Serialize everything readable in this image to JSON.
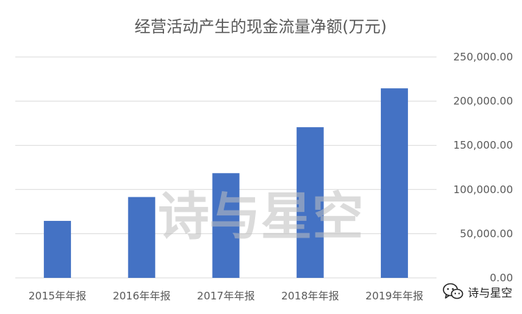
{
  "chart_data": {
    "type": "bar",
    "title": "经营活动产生的现金流量净额(万元)",
    "categories": [
      "2015年年报",
      "2016年年报",
      "2017年年报",
      "2018年年报",
      "2019年年报"
    ],
    "values": [
      64500,
      91500,
      118500,
      170500,
      214500
    ],
    "ylim": [
      0,
      250000
    ],
    "yticks": [
      "0.00",
      "50,000.00",
      "100,000.00",
      "150,000.00",
      "200,000.00",
      "250,000.00"
    ],
    "ytick_values": [
      0,
      50000,
      100000,
      150000,
      200000,
      250000
    ],
    "grid": true,
    "bar_color": "#4472c4",
    "watermark": "诗与星空"
  },
  "logo": {
    "text": "诗与星空",
    "icon": "wechat-icon"
  }
}
